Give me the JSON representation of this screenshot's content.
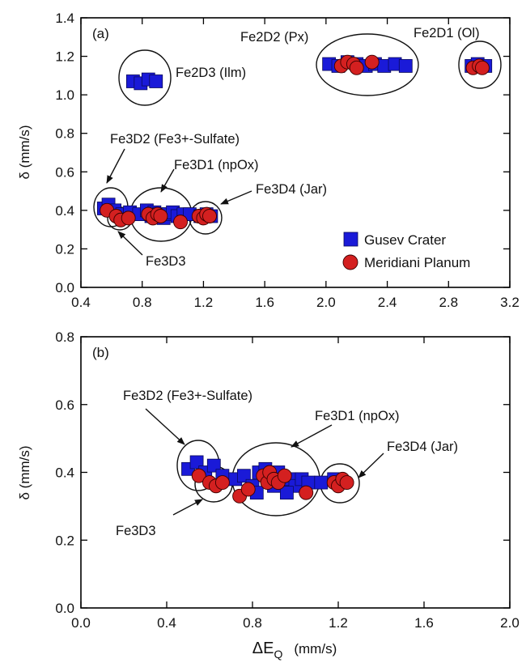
{
  "chart_data": [
    {
      "type": "scatter",
      "panel_label": "(a)",
      "xlim": [
        0.4,
        3.2
      ],
      "ylim": [
        0.0,
        1.4
      ],
      "x_ticks": [
        "0.4",
        "0.8",
        "1.2",
        "1.6",
        "2.0",
        "2.4",
        "2.8",
        "3.2"
      ],
      "y_ticks": [
        "0.0",
        "0.2",
        "0.4",
        "0.6",
        "0.8",
        "1.0",
        "1.2",
        "1.4"
      ],
      "ylabel": "δ (mm/s)",
      "xlabel": "",
      "legend_position": "bottom-right",
      "series": [
        {
          "name": "Gusev Crater",
          "marker": "square",
          "color": "#1a1ad8",
          "points": [
            [
              0.55,
              0.41
            ],
            [
              0.58,
              0.43
            ],
            [
              0.62,
              0.4
            ],
            [
              0.67,
              0.38
            ],
            [
              0.72,
              0.39
            ],
            [
              0.78,
              0.38
            ],
            [
              0.83,
              0.4
            ],
            [
              0.86,
              0.37
            ],
            [
              0.88,
              0.39
            ],
            [
              0.91,
              0.38
            ],
            [
              0.94,
              0.36
            ],
            [
              0.97,
              0.38
            ],
            [
              1.0,
              0.39
            ],
            [
              1.03,
              0.37
            ],
            [
              1.07,
              0.38
            ],
            [
              1.11,
              0.38
            ],
            [
              1.18,
              0.37
            ],
            [
              1.22,
              0.38
            ],
            [
              1.25,
              0.37
            ],
            [
              0.74,
              1.07
            ],
            [
              0.79,
              1.06
            ],
            [
              0.84,
              1.08
            ],
            [
              0.89,
              1.07
            ],
            [
              2.02,
              1.16
            ],
            [
              2.08,
              1.15
            ],
            [
              2.14,
              1.17
            ],
            [
              2.2,
              1.16
            ],
            [
              2.26,
              1.15
            ],
            [
              2.32,
              1.16
            ],
            [
              2.38,
              1.15
            ],
            [
              2.45,
              1.16
            ],
            [
              2.52,
              1.15
            ],
            [
              2.95,
              1.15
            ],
            [
              2.99,
              1.16
            ],
            [
              3.04,
              1.15
            ]
          ]
        },
        {
          "name": "Meridiani Planum",
          "marker": "circle",
          "color": "#d42020",
          "points": [
            [
              0.57,
              0.4
            ],
            [
              0.63,
              0.37
            ],
            [
              0.66,
              0.35
            ],
            [
              0.71,
              0.36
            ],
            [
              0.84,
              0.38
            ],
            [
              0.87,
              0.36
            ],
            [
              0.9,
              0.38
            ],
            [
              0.92,
              0.37
            ],
            [
              1.05,
              0.34
            ],
            [
              1.17,
              0.37
            ],
            [
              1.2,
              0.36
            ],
            [
              1.22,
              0.38
            ],
            [
              1.24,
              0.37
            ],
            [
              2.1,
              1.15
            ],
            [
              2.14,
              1.17
            ],
            [
              2.18,
              1.16
            ],
            [
              2.2,
              1.14
            ],
            [
              2.3,
              1.17
            ],
            [
              2.96,
              1.14
            ],
            [
              3.0,
              1.15
            ],
            [
              3.02,
              1.14
            ]
          ]
        }
      ],
      "annotations": [
        "Fe2D2 (Px)",
        "Fe2D1 (Ol)",
        "Fe2D3 (Ilm)",
        "Fe3D2 (Fe3+-Sulfate)",
        "Fe3D1 (npOx)",
        "Fe3D4 (Jar)",
        "Fe3D3"
      ]
    },
    {
      "type": "scatter",
      "panel_label": "(b)",
      "xlim": [
        0.0,
        2.0
      ],
      "ylim": [
        0.0,
        0.8
      ],
      "x_ticks": [
        "0.0",
        "0.4",
        "0.8",
        "1.2",
        "1.6",
        "2.0"
      ],
      "y_ticks": [
        "0.0",
        "0.2",
        "0.4",
        "0.6",
        "0.8"
      ],
      "ylabel": "δ (mm/s)",
      "xlabel": "ΔE_Q (mm/s)",
      "series": [
        {
          "name": "Gusev Crater",
          "marker": "square",
          "color": "#1a1ad8",
          "points": [
            [
              0.5,
              0.41
            ],
            [
              0.54,
              0.43
            ],
            [
              0.58,
              0.4
            ],
            [
              0.62,
              0.42
            ],
            [
              0.66,
              0.39
            ],
            [
              0.72,
              0.38
            ],
            [
              0.76,
              0.39
            ],
            [
              0.8,
              0.36
            ],
            [
              0.83,
              0.4
            ],
            [
              0.86,
              0.41
            ],
            [
              0.88,
              0.38
            ],
            [
              0.9,
              0.36
            ],
            [
              0.92,
              0.4
            ],
            [
              0.95,
              0.37
            ],
            [
              0.98,
              0.38
            ],
            [
              1.0,
              0.36
            ],
            [
              1.03,
              0.38
            ],
            [
              1.06,
              0.37
            ],
            [
              1.12,
              0.37
            ],
            [
              1.18,
              0.38
            ],
            [
              0.82,
              0.34
            ],
            [
              0.96,
              0.34
            ]
          ]
        },
        {
          "name": "Meridiani Planum",
          "marker": "circle",
          "color": "#d42020",
          "points": [
            [
              0.55,
              0.39
            ],
            [
              0.6,
              0.37
            ],
            [
              0.63,
              0.36
            ],
            [
              0.66,
              0.37
            ],
            [
              0.74,
              0.33
            ],
            [
              0.78,
              0.35
            ],
            [
              0.85,
              0.39
            ],
            [
              0.87,
              0.37
            ],
            [
              0.88,
              0.4
            ],
            [
              0.9,
              0.38
            ],
            [
              0.92,
              0.37
            ],
            [
              0.95,
              0.39
            ],
            [
              1.05,
              0.34
            ],
            [
              1.18,
              0.37
            ],
            [
              1.2,
              0.36
            ],
            [
              1.22,
              0.38
            ],
            [
              1.24,
              0.37
            ]
          ]
        }
      ],
      "annotations": [
        "Fe3D2 (Fe3+-Sulfate)",
        "Fe3D1 (npOx)",
        "Fe3D4 (Jar)",
        "Fe3D3"
      ]
    }
  ]
}
